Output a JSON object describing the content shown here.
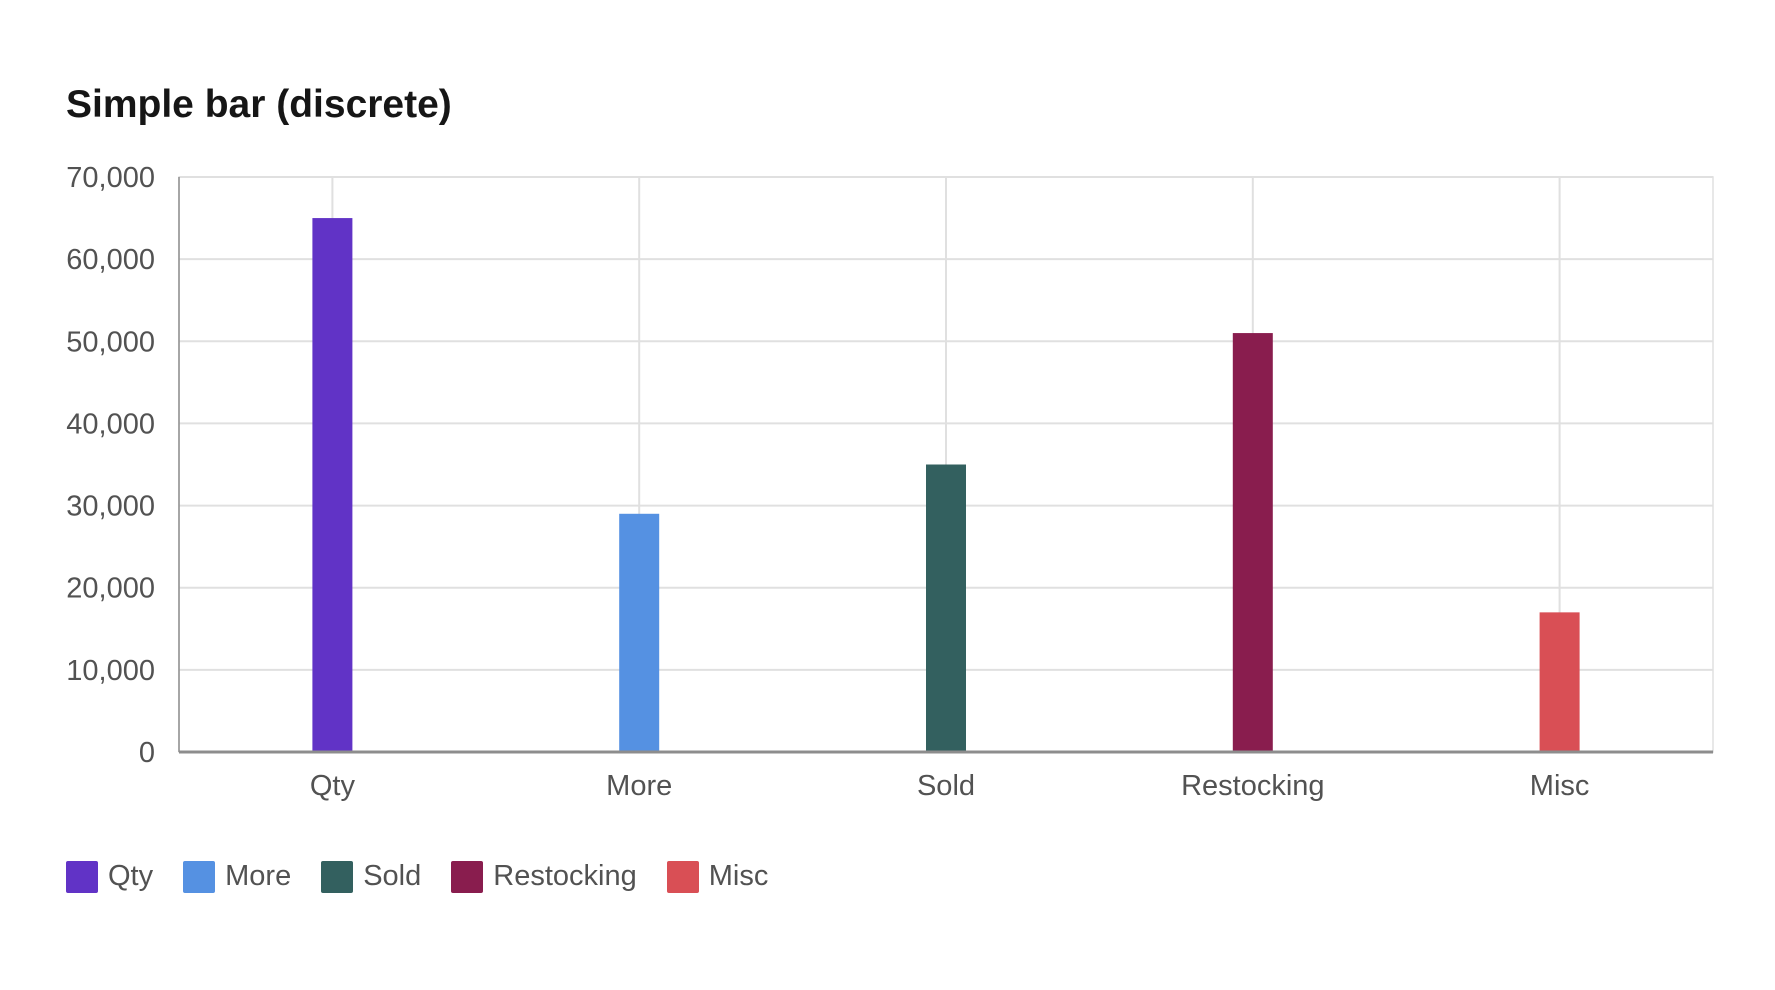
{
  "chart_data": {
    "type": "bar",
    "title": "Simple bar (discrete)",
    "categories": [
      "Qty",
      "More",
      "Sold",
      "Restocking",
      "Misc"
    ],
    "values": [
      65000,
      29000,
      35000,
      51000,
      17000
    ],
    "colors": [
      "#6133c6",
      "#5591e2",
      "#33605f",
      "#891d4e",
      "#d94f55"
    ],
    "ylim": [
      0,
      70000
    ],
    "yticks": [
      0,
      10000,
      20000,
      30000,
      40000,
      50000,
      60000,
      70000
    ],
    "ytick_labels": [
      "0",
      "10,000",
      "20,000",
      "30,000",
      "40,000",
      "50,000",
      "60,000",
      "70,000"
    ],
    "grid": true,
    "legend": {
      "placement": "bottom-left",
      "items": [
        "Qty",
        "More",
        "Sold",
        "Restocking",
        "Misc"
      ]
    }
  }
}
